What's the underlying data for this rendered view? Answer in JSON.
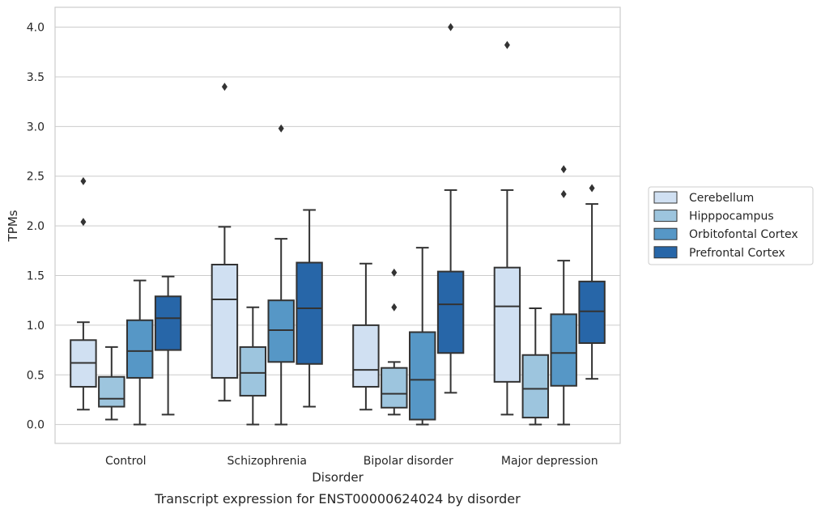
{
  "chart_data": {
    "type": "box",
    "title": "",
    "caption": "Transcript expression for ENST00000624024 by disorder",
    "xlabel": "Disorder",
    "ylabel": "TPMs",
    "ylim": [
      -0.19,
      4.2
    ],
    "yticks": [
      "0.0",
      "0.5",
      "1.0",
      "1.5",
      "2.0",
      "2.5",
      "3.0",
      "3.5",
      "4.0"
    ],
    "ytick_values": [
      0,
      0.5,
      1.0,
      1.5,
      2.0,
      2.5,
      3.0,
      3.5,
      4.0
    ],
    "grid": "horizontal",
    "legend_position": "right",
    "categories": [
      "Control",
      "Schizophrenia",
      "Bipolar disorder",
      "Major depression"
    ],
    "series": [
      {
        "name": "Cerebellum",
        "color": "#d0e0f2",
        "boxes": [
          {
            "whisker_low": 0.15,
            "q1": 0.38,
            "median": 0.62,
            "q3": 0.85,
            "whisker_high": 1.03,
            "outliers": [
              2.45,
              2.04
            ]
          },
          {
            "whisker_low": 0.24,
            "q1": 0.47,
            "median": 1.26,
            "q3": 1.61,
            "whisker_high": 1.99,
            "outliers": [
              3.4
            ]
          },
          {
            "whisker_low": 0.15,
            "q1": 0.38,
            "median": 0.55,
            "q3": 1.0,
            "whisker_high": 1.62,
            "outliers": []
          },
          {
            "whisker_low": 0.1,
            "q1": 0.43,
            "median": 1.19,
            "q3": 1.58,
            "whisker_high": 2.36,
            "outliers": [
              3.82
            ]
          }
        ]
      },
      {
        "name": "Hipppocampus",
        "color": "#9dc5de",
        "boxes": [
          {
            "whisker_low": 0.05,
            "q1": 0.18,
            "median": 0.26,
            "q3": 0.48,
            "whisker_high": 0.78,
            "outliers": []
          },
          {
            "whisker_low": 0.0,
            "q1": 0.29,
            "median": 0.52,
            "q3": 0.78,
            "whisker_high": 1.18,
            "outliers": []
          },
          {
            "whisker_low": 0.1,
            "q1": 0.17,
            "median": 0.31,
            "q3": 0.57,
            "whisker_high": 0.63,
            "outliers": [
              1.53,
              1.18
            ]
          },
          {
            "whisker_low": 0.0,
            "q1": 0.07,
            "median": 0.36,
            "q3": 0.7,
            "whisker_high": 1.17,
            "outliers": []
          }
        ]
      },
      {
        "name": "Orbitofontal Cortex",
        "color": "#5697c6",
        "boxes": [
          {
            "whisker_low": 0.0,
            "q1": 0.47,
            "median": 0.74,
            "q3": 1.05,
            "whisker_high": 1.45,
            "outliers": []
          },
          {
            "whisker_low": 0.0,
            "q1": 0.63,
            "median": 0.95,
            "q3": 1.25,
            "whisker_high": 1.87,
            "outliers": [
              2.98
            ]
          },
          {
            "whisker_low": 0.0,
            "q1": 0.05,
            "median": 0.45,
            "q3": 0.93,
            "whisker_high": 1.78,
            "outliers": []
          },
          {
            "whisker_low": 0.0,
            "q1": 0.39,
            "median": 0.72,
            "q3": 1.11,
            "whisker_high": 1.65,
            "outliers": [
              2.57,
              2.32
            ]
          }
        ]
      },
      {
        "name": "Prefrontal Cortex",
        "color": "#2766a8",
        "boxes": [
          {
            "whisker_low": 0.1,
            "q1": 0.75,
            "median": 1.07,
            "q3": 1.29,
            "whisker_high": 1.49,
            "outliers": []
          },
          {
            "whisker_low": 0.18,
            "q1": 0.61,
            "median": 1.17,
            "q3": 1.63,
            "whisker_high": 2.16,
            "outliers": []
          },
          {
            "whisker_low": 0.32,
            "q1": 0.72,
            "median": 1.21,
            "q3": 1.54,
            "whisker_high": 2.36,
            "outliers": [
              4.0
            ]
          },
          {
            "whisker_low": 0.46,
            "q1": 0.82,
            "median": 1.14,
            "q3": 1.44,
            "whisker_high": 2.22,
            "outliers": [
              2.38
            ]
          }
        ]
      }
    ]
  }
}
